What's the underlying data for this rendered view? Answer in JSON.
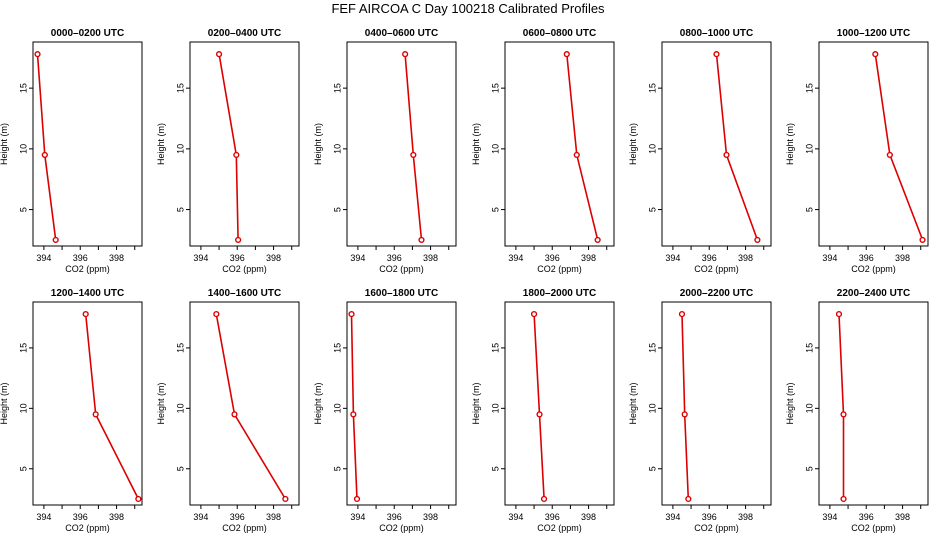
{
  "title": "FEF AIRCOA C  Day 100218  Calibrated Profiles",
  "colors": {
    "series": "#dd0000",
    "axis": "#000000",
    "background": "#ffffff"
  },
  "chart_data": [
    {
      "type": "line",
      "title": "0000–0200 UTC",
      "xlabel": "CO2 (ppm)",
      "ylabel": "Height (m)",
      "xlim": [
        393.4,
        399.4
      ],
      "ylim": [
        2,
        18.8
      ],
      "xticks": [
        "394",
        "396",
        "398"
      ],
      "yticks": [
        "5",
        "10",
        "15"
      ],
      "x": [
        393.65,
        394.05,
        394.65
      ],
      "y": [
        17.8,
        9.5,
        2.5
      ]
    },
    {
      "type": "line",
      "title": "0200–0400 UTC",
      "xlabel": "CO2 (ppm)",
      "ylabel": "Height (m)",
      "xlim": [
        393.4,
        399.4
      ],
      "ylim": [
        2,
        18.8
      ],
      "xticks": [
        "394",
        "396",
        "398"
      ],
      "yticks": [
        "5",
        "10",
        "15"
      ],
      "x": [
        395.0,
        395.95,
        396.05
      ],
      "y": [
        17.8,
        9.5,
        2.5
      ]
    },
    {
      "type": "line",
      "title": "0400–0600 UTC",
      "xlabel": "CO2 (ppm)",
      "ylabel": "Height (m)",
      "xlim": [
        393.4,
        399.4
      ],
      "ylim": [
        2,
        18.8
      ],
      "xticks": [
        "394",
        "396",
        "398"
      ],
      "yticks": [
        "5",
        "10",
        "15"
      ],
      "x": [
        396.6,
        397.05,
        397.5
      ],
      "y": [
        17.8,
        9.5,
        2.5
      ]
    },
    {
      "type": "line",
      "title": "0600–0800 UTC",
      "xlabel": "CO2 (ppm)",
      "ylabel": "Height (m)",
      "xlim": [
        393.4,
        399.4
      ],
      "ylim": [
        2,
        18.8
      ],
      "xticks": [
        "394",
        "396",
        "398"
      ],
      "yticks": [
        "5",
        "10",
        "15"
      ],
      "x": [
        396.8,
        397.35,
        398.5
      ],
      "y": [
        17.8,
        9.5,
        2.5
      ]
    },
    {
      "type": "line",
      "title": "0800–1000 UTC",
      "xlabel": "CO2 (ppm)",
      "ylabel": "Height (m)",
      "xlim": [
        393.4,
        399.4
      ],
      "ylim": [
        2,
        18.8
      ],
      "xticks": [
        "394",
        "396",
        "398"
      ],
      "yticks": [
        "5",
        "10",
        "15"
      ],
      "x": [
        396.4,
        396.95,
        398.65
      ],
      "y": [
        17.8,
        9.5,
        2.5
      ]
    },
    {
      "type": "line",
      "title": "1000–1200 UTC",
      "xlabel": "CO2 (ppm)",
      "ylabel": "Height (m)",
      "xlim": [
        393.4,
        399.4
      ],
      "ylim": [
        2,
        18.8
      ],
      "xticks": [
        "394",
        "396",
        "398"
      ],
      "yticks": [
        "5",
        "10",
        "15"
      ],
      "x": [
        396.5,
        397.3,
        399.1
      ],
      "y": [
        17.8,
        9.5,
        2.5
      ]
    },
    {
      "type": "line",
      "title": "1200–1400 UTC",
      "xlabel": "CO2 (ppm)",
      "ylabel": "Height (m)",
      "xlim": [
        393.4,
        399.4
      ],
      "ylim": [
        2,
        18.8
      ],
      "xticks": [
        "394",
        "396",
        "398"
      ],
      "yticks": [
        "5",
        "10",
        "15"
      ],
      "x": [
        396.3,
        396.85,
        399.2
      ],
      "y": [
        17.8,
        9.5,
        2.5
      ]
    },
    {
      "type": "line",
      "title": "1400–1600 UTC",
      "xlabel": "CO2 (ppm)",
      "ylabel": "Height (m)",
      "xlim": [
        393.4,
        399.4
      ],
      "ylim": [
        2,
        18.8
      ],
      "xticks": [
        "394",
        "396",
        "398"
      ],
      "yticks": [
        "5",
        "10",
        "15"
      ],
      "x": [
        394.85,
        395.85,
        398.65
      ],
      "y": [
        17.8,
        9.5,
        2.5
      ]
    },
    {
      "type": "line",
      "title": "1600–1800 UTC",
      "xlabel": "CO2 (ppm)",
      "ylabel": "Height (m)",
      "xlim": [
        393.4,
        399.4
      ],
      "ylim": [
        2,
        18.8
      ],
      "xticks": [
        "394",
        "396",
        "398"
      ],
      "yticks": [
        "5",
        "10",
        "15"
      ],
      "x": [
        393.65,
        393.75,
        393.95
      ],
      "y": [
        17.8,
        9.5,
        2.5
      ]
    },
    {
      "type": "line",
      "title": "1800–2000 UTC",
      "xlabel": "CO2 (ppm)",
      "ylabel": "Height (m)",
      "xlim": [
        393.4,
        399.4
      ],
      "ylim": [
        2,
        18.8
      ],
      "xticks": [
        "394",
        "396",
        "398"
      ],
      "yticks": [
        "5",
        "10",
        "15"
      ],
      "x": [
        395.0,
        395.3,
        395.55
      ],
      "y": [
        17.8,
        9.5,
        2.5
      ]
    },
    {
      "type": "line",
      "title": "2000–2200 UTC",
      "xlabel": "CO2 (ppm)",
      "ylabel": "Height (m)",
      "xlim": [
        393.4,
        399.4
      ],
      "ylim": [
        2,
        18.8
      ],
      "xticks": [
        "394",
        "396",
        "398"
      ],
      "yticks": [
        "5",
        "10",
        "15"
      ],
      "x": [
        394.5,
        394.65,
        394.85
      ],
      "y": [
        17.8,
        9.5,
        2.5
      ]
    },
    {
      "type": "line",
      "title": "2200–2400 UTC",
      "xlabel": "CO2 (ppm)",
      "ylabel": "Height (m)",
      "xlim": [
        393.4,
        399.4
      ],
      "ylim": [
        2,
        18.8
      ],
      "xticks": [
        "394",
        "396",
        "398"
      ],
      "yticks": [
        "5",
        "10",
        "15"
      ],
      "x": [
        394.5,
        394.75,
        394.75
      ],
      "y": [
        17.8,
        9.5,
        2.5
      ]
    }
  ]
}
